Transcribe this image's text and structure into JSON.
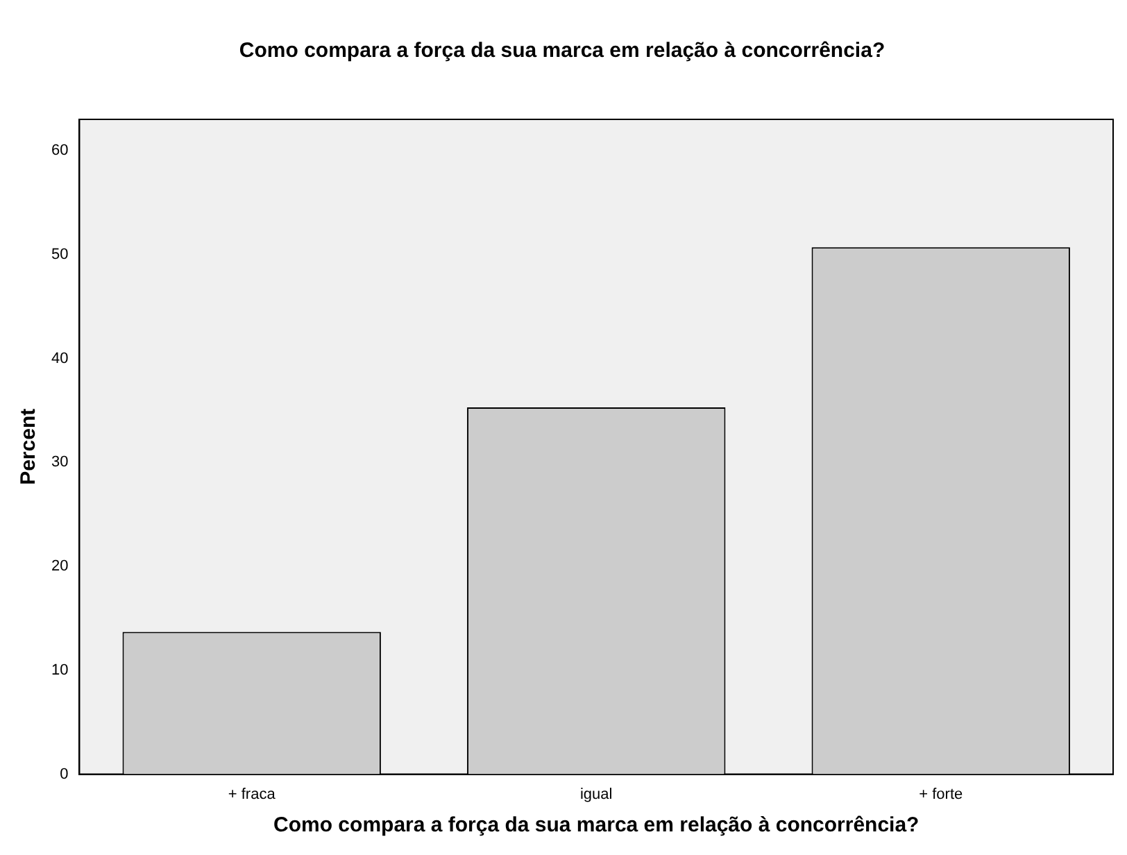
{
  "chart_data": {
    "type": "bar",
    "title": "Como compara a força da sua marca em relação à concorrência?",
    "xlabel": "Como compara a força da sua marca em relação à concorrência?",
    "ylabel": "Percent",
    "categories": [
      "+ fraca",
      "igual",
      "+ forte"
    ],
    "values": [
      13.7,
      35.3,
      50.7
    ],
    "color": "#cccccc",
    "ylim": [
      0,
      63
    ],
    "yticks": [
      0,
      10,
      20,
      30,
      40,
      50,
      60
    ],
    "grid": false,
    "legend": false
  }
}
